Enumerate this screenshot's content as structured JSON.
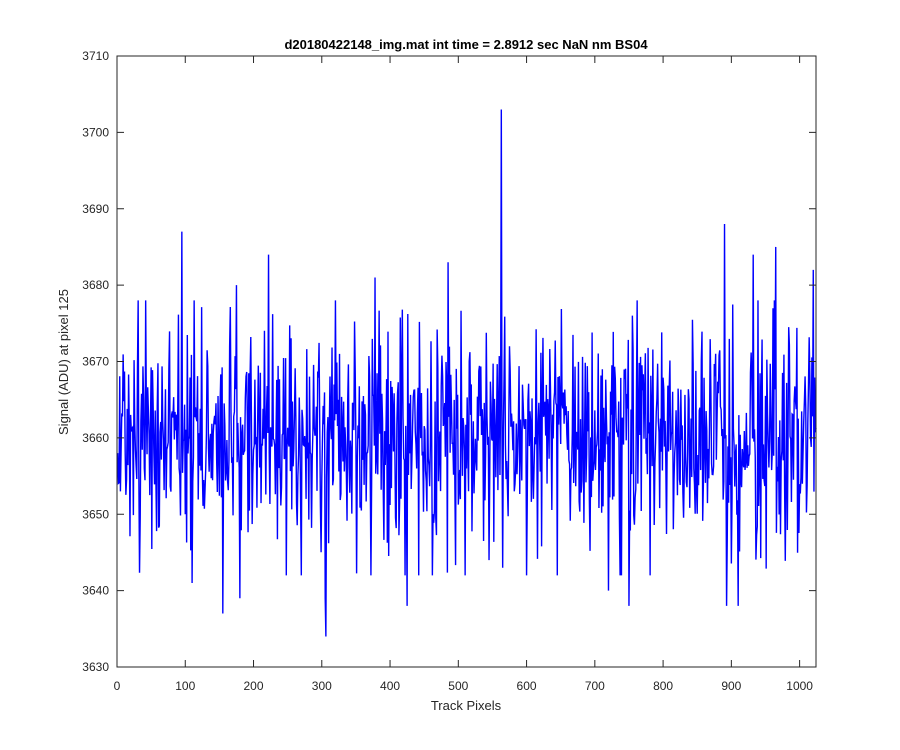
{
  "chart_data": {
    "type": "line",
    "title": "d20180422148_img.mat int time = 2.8912 sec  NaN nm BS04",
    "xlabel": "Track Pixels",
    "ylabel": "Signal (ADU) at pixel 125",
    "xlim": [
      0,
      1024
    ],
    "ylim": [
      3630,
      3710
    ],
    "xticks": [
      0,
      100,
      200,
      300,
      400,
      500,
      600,
      700,
      800,
      900,
      1000
    ],
    "yticks": [
      3630,
      3640,
      3650,
      3660,
      3670,
      3680,
      3690,
      3700,
      3710
    ],
    "grid": false,
    "legend": "none",
    "series": [
      {
        "color": "#0000ff",
        "description": "noisy signal around 3660 ADU, one sample per track pixel 1..1024",
        "mean": 3660,
        "typical_range": [
          3645,
          3675
        ],
        "x": [
          1,
          95,
          100,
          110,
          155,
          165,
          175,
          180,
          222,
          223,
          270,
          305,
          306,
          320,
          378,
          425,
          485,
          545,
          563,
          564,
          565,
          575,
          720,
          750,
          755,
          890,
          893,
          910,
          932,
          965,
          1020
        ],
        "values": [
          3658,
          3687,
          3650,
          3641,
          3637,
          3672,
          3680,
          3639,
          3684,
          3658,
          3642,
          3639,
          3634,
          3678,
          3681,
          3638,
          3683,
          3644,
          3703,
          3660,
          3643,
          3672,
          3640,
          3638,
          3676,
          3688,
          3638,
          3638,
          3684,
          3685,
          3682
        ]
      }
    ]
  }
}
